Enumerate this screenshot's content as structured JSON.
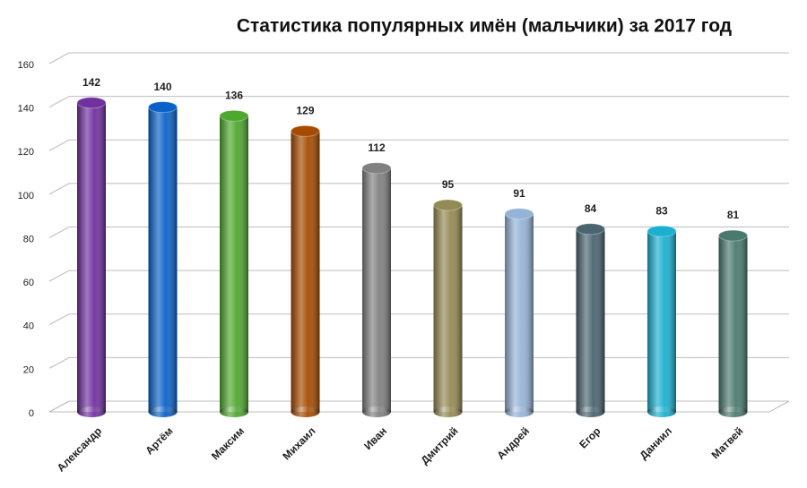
{
  "chart_data": {
    "type": "bar",
    "title": "Статистика популярных имён (мальчики) за 2017 год",
    "categories": [
      "Александр",
      "Артём",
      "Максим",
      "Михаил",
      "Иван",
      "Дмитрий",
      "Андрей",
      "Егор",
      "Даниил",
      "Матвей"
    ],
    "values": [
      142,
      140,
      136,
      129,
      112,
      95,
      91,
      84,
      83,
      81
    ],
    "colors": [
      "#7030a0",
      "#0a62c8",
      "#4ea72e",
      "#a64b00",
      "#808080",
      "#948a54",
      "#95b3d7",
      "#4a6470",
      "#1bb0d0",
      "#4a7a6e"
    ],
    "ylim": [
      0,
      160
    ],
    "yticks": [
      0,
      20,
      40,
      60,
      80,
      100,
      120,
      140,
      160
    ],
    "grid": true
  }
}
